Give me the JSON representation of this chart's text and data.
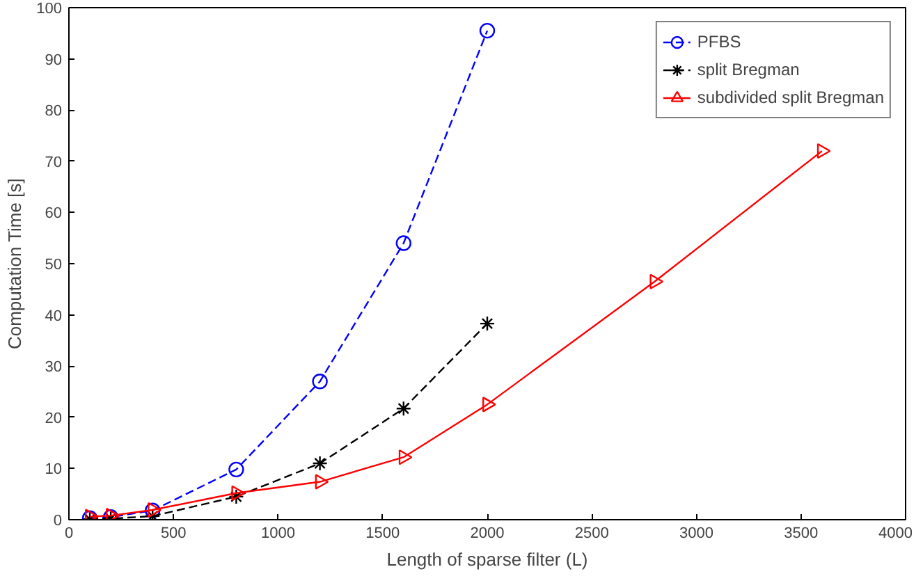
{
  "chart_data": {
    "type": "line",
    "xlabel": "Length of sparse filter (L)",
    "ylabel": "Computation Time [s]",
    "xlim": [
      0,
      4000
    ],
    "xticks": [
      0,
      500,
      1000,
      1500,
      2000,
      2500,
      3000,
      3500,
      4000
    ],
    "ylim": [
      0,
      100
    ],
    "yticks": [
      0,
      10,
      20,
      30,
      40,
      50,
      60,
      70,
      80,
      90,
      100
    ],
    "grid": false,
    "legend": "top right",
    "series": [
      {
        "name": "PFBS",
        "color": "#0000ff",
        "marker": "circle",
        "line_style": "dashed",
        "x": [
          100,
          200,
          400,
          800,
          1200,
          1600,
          2000
        ],
        "values": [
          0.3,
          0.5,
          1.8,
          9.8,
          27,
          54,
          95.5
        ]
      },
      {
        "name": "split Bregman",
        "color": "#000000",
        "marker": "cross",
        "line_style": "dashed",
        "x": [
          100,
          200,
          400,
          800,
          1200,
          1600,
          2000
        ],
        "values": [
          0.1,
          0.2,
          0.7,
          4.5,
          11,
          21.7,
          38.3
        ]
      },
      {
        "name": "subdivided split Bregman",
        "color": "#ff0000",
        "marker": "triangle",
        "line_style": "solid",
        "x": [
          100,
          200,
          400,
          800,
          1200,
          1600,
          2000,
          2800,
          3600
        ],
        "values": [
          0.6,
          0.8,
          1.9,
          5.2,
          7.4,
          12.2,
          22.5,
          46.5,
          72
        ]
      }
    ]
  }
}
